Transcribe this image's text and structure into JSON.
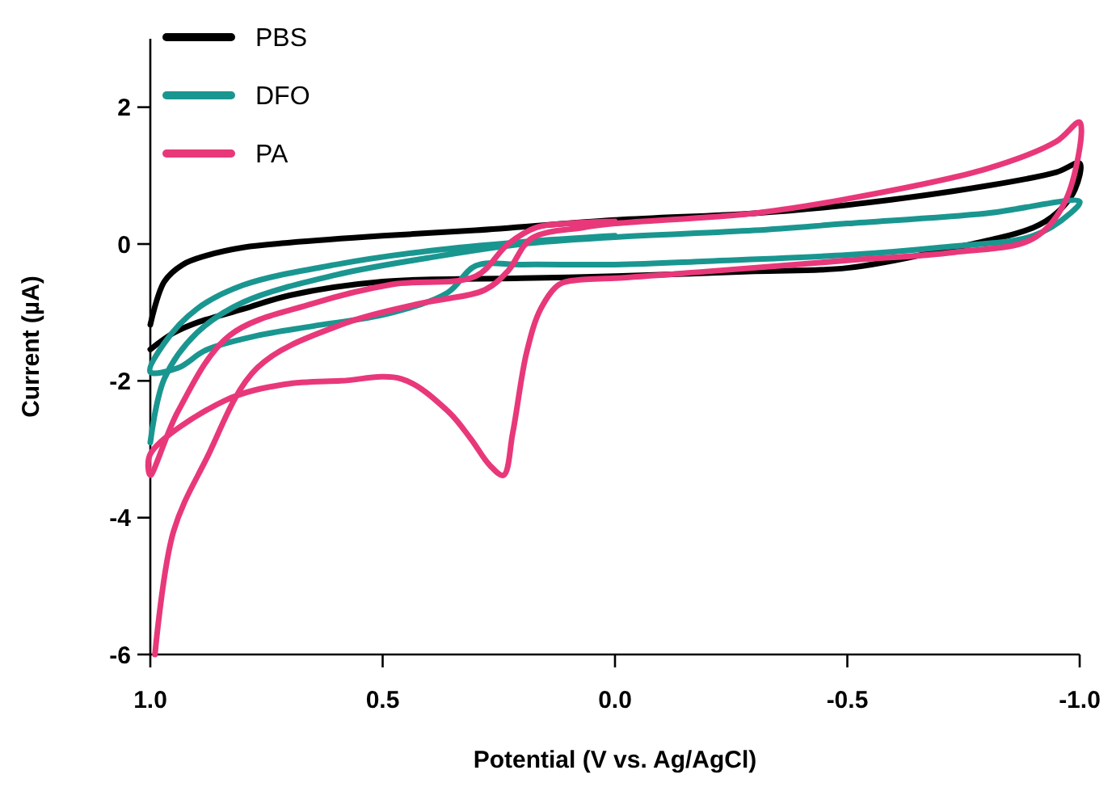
{
  "chart_data": {
    "type": "line",
    "xlabel": "Potential (V vs. Ag/AgCl)",
    "ylabel": "Current (µA)",
    "xlim": [
      1.0,
      -1.0
    ],
    "ylim": [
      -6,
      3
    ],
    "xticks": [
      {
        "value": 1,
        "label": "1.0"
      },
      0.5,
      {
        "value": 0,
        "label": "0.0"
      },
      -0.5,
      {
        "value": -1,
        "label": "-1.0"
      }
    ],
    "yticks": [
      -6,
      -4,
      -2,
      0,
      2
    ],
    "legend": "top left",
    "grid": false,
    "marker": "none",
    "line_style": "solid",
    "series": [
      {
        "name": "PBS",
        "color": "#000000",
        "x": [
          1.0,
          0.97,
          0.93,
          0.88,
          0.8,
          0.7,
          0.5,
          0.3,
          0.0,
          -0.3,
          -0.5,
          -0.8,
          -0.95,
          -1.0,
          -0.99,
          -0.95,
          -0.9,
          -0.7,
          -0.5,
          -0.3,
          0.0,
          0.2,
          0.5,
          0.7,
          0.8,
          0.9,
          0.95,
          1.0
        ],
        "values": [
          -1.18,
          -0.55,
          -0.3,
          -0.17,
          -0.05,
          0.02,
          0.12,
          0.2,
          0.35,
          0.45,
          0.57,
          0.85,
          1.05,
          1.18,
          0.8,
          0.45,
          0.24,
          -0.1,
          -0.35,
          -0.4,
          -0.47,
          -0.5,
          -0.55,
          -0.75,
          -0.95,
          -1.15,
          -1.3,
          -1.54
        ]
      },
      {
        "name": "DFO",
        "color": "#1a9690",
        "x": [
          1.0,
          0.97,
          0.9,
          0.8,
          0.6,
          0.4,
          0.2,
          0.0,
          -0.3,
          -0.5,
          -0.8,
          -1.0,
          -0.98,
          -0.9,
          -0.7,
          -0.5,
          -0.2,
          0.0,
          0.2,
          0.3,
          0.36,
          0.49,
          0.65,
          0.77,
          0.88,
          0.94,
          1.0,
          0.97,
          0.9,
          0.8,
          0.6,
          0.4,
          0.2,
          0.0
        ],
        "values": [
          -2.9,
          -1.97,
          -1.3,
          -0.85,
          -0.45,
          -0.2,
          0.0,
          0.1,
          0.2,
          0.3,
          0.45,
          0.62,
          0.45,
          0.12,
          -0.05,
          -0.16,
          -0.25,
          -0.3,
          -0.3,
          -0.32,
          -0.71,
          -1.02,
          -1.2,
          -1.34,
          -1.55,
          -1.81,
          -1.87,
          -1.45,
          -0.95,
          -0.6,
          -0.3,
          -0.1,
          0.03,
          0.12
        ]
      },
      {
        "name": "PA",
        "color": "#e8387a",
        "x": [
          0.99,
          0.95,
          0.88,
          0.77,
          0.59,
          0.42,
          0.28,
          0.23,
          0.18,
          0.07,
          0.0,
          -0.3,
          -0.5,
          -0.8,
          -0.95,
          -1.0,
          -0.97,
          -0.9,
          -0.73,
          -0.5,
          -0.2,
          0.0,
          0.07,
          0.12,
          0.16,
          0.19,
          0.22,
          0.24,
          0.27,
          0.31,
          0.36,
          0.46,
          0.59,
          0.71,
          0.84,
          1.0,
          1.0,
          0.94,
          0.83,
          0.65,
          0.48,
          0.3,
          0.23,
          0.17,
          0.1,
          0.0
        ],
        "values": [
          -6.0,
          -4.2,
          -3.15,
          -1.81,
          -1.18,
          -0.87,
          -0.67,
          -0.39,
          0.08,
          0.24,
          0.3,
          0.45,
          0.66,
          1.1,
          1.5,
          1.78,
          0.64,
          0.08,
          -0.12,
          -0.24,
          -0.4,
          -0.5,
          -0.52,
          -0.59,
          -0.95,
          -1.58,
          -2.76,
          -3.38,
          -3.23,
          -2.85,
          -2.44,
          -1.97,
          -2.0,
          -2.05,
          -2.29,
          -3.07,
          -3.38,
          -2.44,
          -1.34,
          -0.87,
          -0.59,
          -0.47,
          0.0,
          0.24,
          0.3,
          0.33
        ]
      }
    ]
  }
}
